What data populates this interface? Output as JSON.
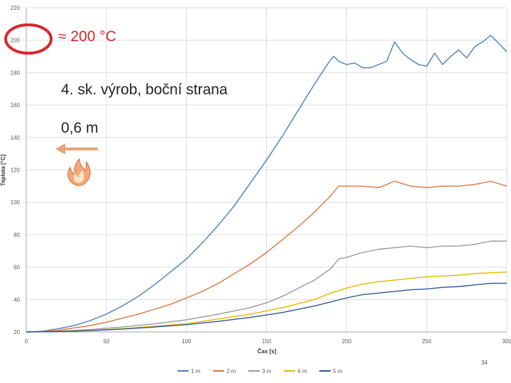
{
  "chart_data": {
    "type": "line",
    "title": "",
    "xlabel": "Čas [s]",
    "ylabel": "Teplota [°C]",
    "xlim": [
      0,
      300
    ],
    "ylim": [
      20,
      220
    ],
    "xticks": [
      0,
      50,
      100,
      150,
      200,
      250,
      300
    ],
    "yticks": [
      20,
      40,
      60,
      80,
      100,
      120,
      140,
      160,
      180,
      200,
      220
    ],
    "grid": true,
    "legend_position": "bottom",
    "series": [
      {
        "name": "1 m",
        "color": "#4a7ebb",
        "x": [
          0,
          10,
          20,
          30,
          40,
          50,
          60,
          70,
          80,
          90,
          100,
          110,
          120,
          130,
          140,
          150,
          160,
          170,
          180,
          190,
          192,
          195,
          200,
          205,
          210,
          215,
          220,
          225,
          230,
          235,
          240,
          245,
          250,
          255,
          260,
          265,
          270,
          275,
          280,
          285,
          290,
          295,
          300
        ],
        "values": [
          20,
          20.5,
          22,
          24,
          27,
          31,
          36,
          42,
          49,
          57,
          65,
          75,
          86,
          98,
          112,
          126,
          141,
          157,
          173,
          188,
          190,
          187,
          185,
          186,
          183,
          183,
          185,
          187,
          199,
          192,
          188,
          185,
          184,
          192,
          185,
          190,
          194,
          189,
          196,
          199,
          203,
          198,
          193
        ]
      },
      {
        "name": "2 m",
        "color": "#d9763b",
        "x": [
          0,
          10,
          20,
          30,
          40,
          50,
          60,
          70,
          80,
          90,
          100,
          110,
          120,
          130,
          140,
          150,
          160,
          170,
          180,
          190,
          195,
          200,
          210,
          220,
          230,
          240,
          250,
          260,
          270,
          280,
          290,
          300
        ],
        "values": [
          20,
          20.3,
          21,
          22.5,
          24,
          26,
          28.5,
          31,
          34,
          37,
          41,
          45,
          50,
          56,
          62,
          69,
          77,
          85,
          94,
          104,
          110,
          110,
          110,
          109,
          113,
          110,
          109,
          110,
          110,
          111,
          113,
          110
        ]
      },
      {
        "name": "3 m",
        "color": "#999999",
        "x": [
          0,
          20,
          40,
          60,
          80,
          100,
          120,
          140,
          150,
          160,
          170,
          180,
          190,
          195,
          200,
          210,
          220,
          230,
          240,
          250,
          260,
          270,
          280,
          290,
          300
        ],
        "values": [
          20,
          20.5,
          21.5,
          23,
          25,
          27.5,
          31,
          35,
          38,
          42,
          47,
          52,
          59,
          65,
          66,
          69,
          71,
          72,
          73,
          72,
          73,
          73,
          74,
          76,
          76
        ]
      },
      {
        "name": "4 m",
        "color": "#e6b800",
        "x": [
          0,
          20,
          40,
          60,
          80,
          100,
          120,
          140,
          160,
          180,
          190,
          200,
          210,
          220,
          230,
          240,
          250,
          260,
          270,
          280,
          290,
          300
        ],
        "values": [
          20,
          20.3,
          21,
          22,
          23.5,
          25,
          28,
          31,
          35,
          40,
          44,
          47,
          49.5,
          51,
          52,
          53,
          54,
          54.5,
          55,
          56,
          56.5,
          57
        ]
      },
      {
        "name": "5 m",
        "color": "#2f5597",
        "x": [
          0,
          20,
          40,
          60,
          80,
          100,
          120,
          140,
          160,
          180,
          190,
          200,
          210,
          220,
          230,
          240,
          250,
          260,
          270,
          280,
          290,
          300
        ],
        "values": [
          20,
          20.2,
          20.8,
          21.8,
          23,
          24.5,
          26.5,
          29,
          32,
          36,
          38.5,
          41,
          43,
          44,
          45,
          46,
          46.5,
          47.5,
          48,
          49,
          50,
          50
        ]
      }
    ]
  },
  "annotations": {
    "temperature": "≈ 200 °C",
    "title": "4. sk. výrob, boční strana",
    "distance": "0,6 m"
  },
  "icons": {
    "arrow": "arrow-left-icon",
    "fire": "fire-icon"
  },
  "slide_number": "34"
}
